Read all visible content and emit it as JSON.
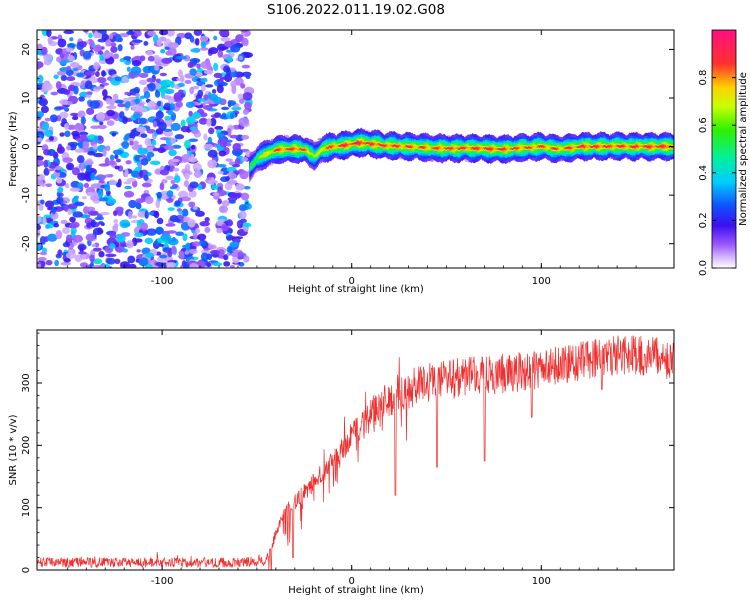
{
  "page": {
    "title": "S106.2022.011.19.02.G08"
  },
  "chart_data": [
    {
      "type": "heatmap",
      "title": "S106.2022.011.19.02.G08",
      "xlabel": "Height of straight line (km)",
      "ylabel": "Frequency (Hz)",
      "xlim": [
        -166,
        170
      ],
      "ylim": [
        -25,
        24
      ],
      "xticks": [
        -100,
        0,
        100
      ],
      "xtick_labels": [
        "-100",
        "0",
        "100"
      ],
      "yticks": [
        -20,
        -10,
        0,
        10,
        20
      ],
      "ytick_labels": [
        "-20",
        "-10",
        "0",
        "10",
        "20"
      ],
      "grid": false,
      "colorbar": {
        "label": "Normalized spectral amplitude",
        "range": [
          0,
          1
        ],
        "ticks": [
          0.0,
          0.2,
          0.4,
          0.6,
          0.8
        ],
        "tick_labels": [
          "0.0",
          "0.2",
          "0.4",
          "0.6",
          "0.8"
        ],
        "colormap": "rainbow (white-violet-blue-cyan-green-yellow-red-magenta)"
      },
      "noise_region_x": [
        -166,
        -54
      ],
      "noise_amplitude_range": [
        0.05,
        0.4
      ],
      "signal_start_x": -54,
      "ridge": {
        "x": [
          -54,
          -50,
          -45,
          -40,
          -35,
          -30,
          -25,
          -20,
          -15,
          -10,
          -5,
          0,
          5,
          10,
          20,
          30,
          40,
          50,
          60,
          70,
          80,
          90,
          100,
          110,
          120,
          130,
          140,
          150,
          160,
          170
        ],
        "freq": [
          -4.5,
          -2.5,
          -1.5,
          -0.8,
          -0.5,
          -0.5,
          -0.6,
          -2.0,
          -0.4,
          0.0,
          0.2,
          0.5,
          0.8,
          0.5,
          0.2,
          0.0,
          -0.2,
          -0.4,
          -0.3,
          -0.4,
          -0.5,
          -0.3,
          0.0,
          -0.5,
          0.0,
          0.0,
          0.1,
          0.0,
          0.0,
          0.0
        ],
        "peak_amplitude": [
          0.55,
          0.7,
          0.8,
          0.9,
          0.92,
          0.93,
          0.9,
          0.7,
          0.88,
          0.9,
          0.95,
          0.97,
          0.98,
          0.95,
          0.92,
          0.9,
          0.88,
          0.93,
          0.92,
          0.94,
          0.93,
          0.9,
          0.9,
          0.88,
          0.93,
          0.94,
          0.92,
          0.93,
          0.95,
          0.96
        ]
      }
    },
    {
      "type": "line",
      "xlabel": "Height of straight line (km)",
      "ylabel": "SNR (10 * v/v)",
      "xlim": [
        -166,
        170
      ],
      "ylim": [
        0,
        385
      ],
      "xticks": [
        -100,
        0,
        100
      ],
      "xtick_labels": [
        "-100",
        "0",
        "100"
      ],
      "yticks": [
        0,
        100,
        200,
        300
      ],
      "ytick_labels": [
        "0",
        "100",
        "200",
        "300"
      ],
      "grid": false,
      "color": "#ee3030",
      "series": [
        {
          "x": [
            -166,
            -140,
            -120,
            -100,
            -80,
            -60,
            -45,
            -40,
            -35,
            -30,
            -25,
            -20,
            -15,
            -10,
            -5,
            0,
            5,
            10,
            15,
            20,
            25,
            30,
            35,
            40,
            50,
            60,
            70,
            80,
            90,
            100,
            110,
            120,
            130,
            140,
            150,
            160,
            170
          ],
          "values": [
            12,
            12,
            12,
            12,
            12,
            12,
            15,
            60,
            95,
            110,
            125,
            140,
            155,
            175,
            195,
            215,
            235,
            250,
            265,
            275,
            285,
            290,
            295,
            300,
            305,
            310,
            312,
            315,
            318,
            322,
            328,
            335,
            340,
            345,
            345,
            342,
            335
          ]
        }
      ],
      "dips": [
        {
          "x": -31,
          "min": 20
        },
        {
          "x": 23,
          "min": 120
        },
        {
          "x": 45,
          "min": 165
        },
        {
          "x": 70,
          "min": 175
        },
        {
          "x": 95,
          "min": 245
        },
        {
          "x": 132,
          "min": 290
        }
      ],
      "noise_amplitude": 8
    }
  ]
}
